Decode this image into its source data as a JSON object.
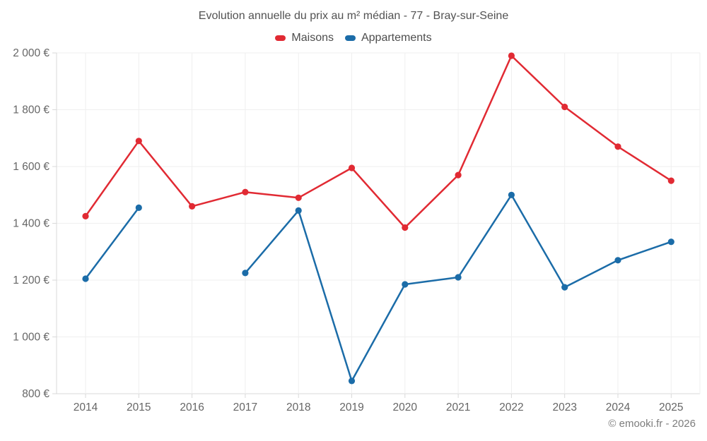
{
  "title": "Evolution annuelle du prix au m² médian - 77 - Bray-sur-Seine",
  "copyright": "© emooki.fr - 2026",
  "theme": {
    "grid_color": "#efefef",
    "axis_color": "#d9d9d9",
    "tick_label_color": "#666666"
  },
  "chart_data": {
    "type": "line",
    "title": "Evolution annuelle du prix au m² médian - 77 - Bray-sur-Seine",
    "categories": [
      "2014",
      "2015",
      "2016",
      "2017",
      "2018",
      "2019",
      "2020",
      "2021",
      "2022",
      "2023",
      "2024",
      "2025"
    ],
    "series": [
      {
        "name": "Maisons",
        "color": "#e12a33",
        "values": [
          1425,
          1690,
          1460,
          1510,
          1490,
          1595,
          1385,
          1570,
          1990,
          1810,
          1670,
          1550
        ]
      },
      {
        "name": "Appartements",
        "color": "#1b6ca8",
        "values": [
          1205,
          1455,
          null,
          1225,
          1445,
          845,
          1185,
          1210,
          1500,
          1175,
          1270,
          1335
        ]
      }
    ],
    "xlabel": "",
    "ylabel": "",
    "ytick_format": "{value} €",
    "ylim": [
      800,
      2000
    ],
    "ytick_step": 200,
    "grid": true,
    "legend_position": "top"
  }
}
